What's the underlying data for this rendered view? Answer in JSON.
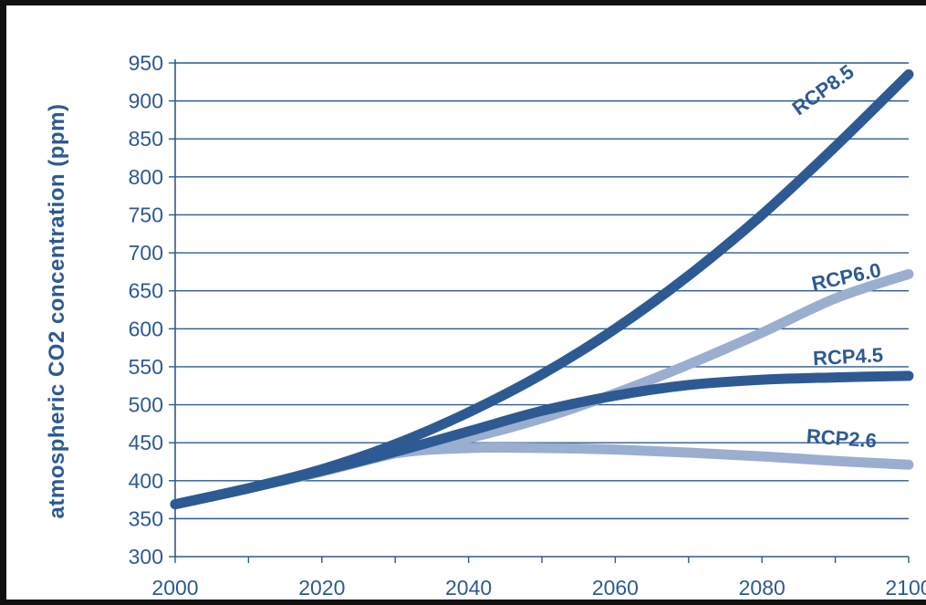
{
  "chart_data": {
    "type": "line",
    "title": "",
    "xlabel": "",
    "ylabel": "atmospheric CO2 concentration (ppm)",
    "xlim": [
      2000,
      2100
    ],
    "ylim": [
      300,
      950
    ],
    "x_major_ticks": [
      2000,
      2020,
      2040,
      2060,
      2080,
      2100
    ],
    "x_minor_step": 10,
    "y_ticks": [
      300,
      350,
      400,
      450,
      500,
      550,
      600,
      650,
      700,
      750,
      800,
      850,
      900,
      950
    ],
    "grid": "horizontal",
    "x": [
      2000,
      2010,
      2020,
      2030,
      2040,
      2050,
      2060,
      2070,
      2080,
      2090,
      2100
    ],
    "series": [
      {
        "name": "RCP8.5",
        "color": "#2d5a92",
        "values": [
          369,
          390,
          415,
          448,
          490,
          540,
          600,
          670,
          750,
          840,
          935
        ]
      },
      {
        "name": "RCP6.0",
        "color": "#9aaed0",
        "values": [
          369,
          390,
          412,
          436,
          456,
          482,
          515,
          553,
          595,
          640,
          672
        ]
      },
      {
        "name": "RCP4.5",
        "color": "#2d5a92",
        "values": [
          369,
          390,
          413,
          438,
          465,
          492,
          512,
          526,
          533,
          536,
          538
        ]
      },
      {
        "name": "RCP2.6",
        "color": "#9aaed0",
        "values": [
          369,
          390,
          412,
          436,
          443,
          443,
          441,
          437,
          432,
          426,
          421
        ]
      }
    ]
  }
}
